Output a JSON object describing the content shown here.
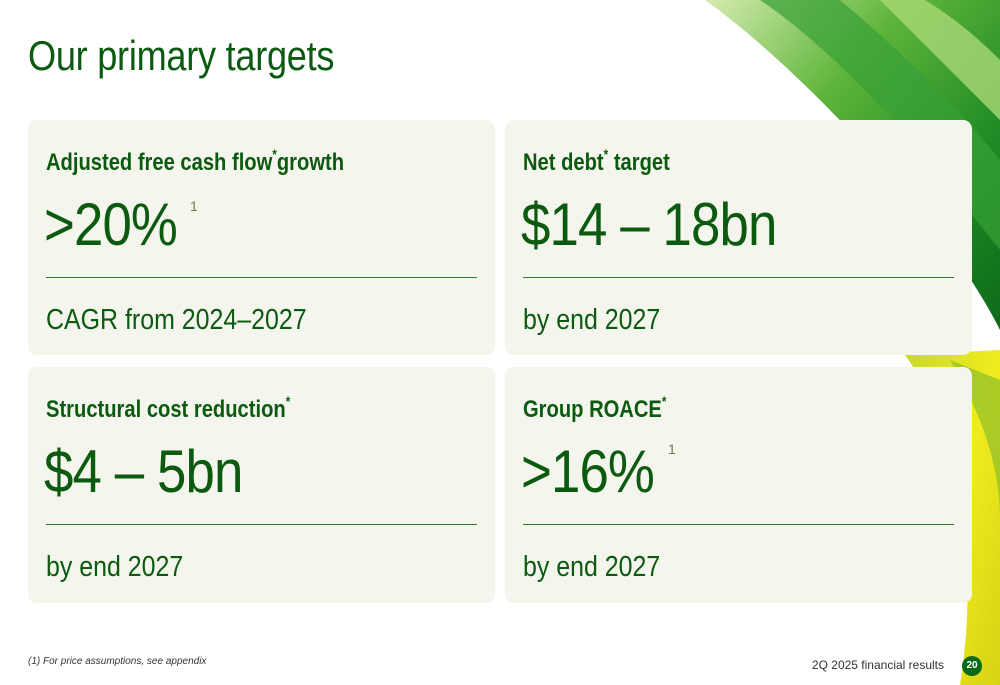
{
  "slide": {
    "title": "Our primary targets",
    "footnote": "(1) For price assumptions, see appendix",
    "footer": "2Q 2025 financial results",
    "page_number": "20"
  },
  "cards": [
    {
      "heading": "Adjusted free cash flow",
      "heading_mark": "*",
      "heading_suffix": "growth",
      "value": ">20%",
      "value_footnote": "1",
      "note": "CAGR from 2024–2027"
    },
    {
      "heading": "Net debt",
      "heading_mark": "*",
      "heading_suffix": " target",
      "value": "$14 – 18bn",
      "note": "by end 2027"
    },
    {
      "heading": "Structural cost reduction",
      "heading_mark": "*",
      "heading_suffix": "",
      "value": "$4 – 5bn",
      "note": "by end 2027"
    },
    {
      "heading": "Group ROACE",
      "heading_mark": "*",
      "heading_suffix": "",
      "value": ">16%",
      "value_footnote": "1",
      "note": "by end 2027"
    }
  ],
  "colors": {
    "brand_green": "#0b5a10",
    "card_background": "#f4f6ed",
    "accent_yellow": "#e6e51c"
  }
}
